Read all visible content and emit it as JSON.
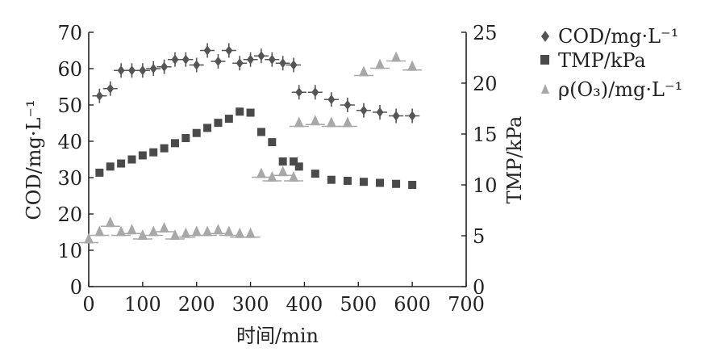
{
  "chart_data": {
    "type": "scatter",
    "xlabel": "时间/min",
    "ylabel_left": "COD/mg·L⁻¹",
    "ylabel_right": "TMP/kPa",
    "xlim": [
      0,
      700
    ],
    "ylim_left": [
      0,
      70
    ],
    "ylim_right": [
      0,
      25
    ],
    "xticks": [
      "0",
      "100",
      "200",
      "300",
      "400",
      "500",
      "600",
      "700"
    ],
    "yticks_left": [
      "0",
      "10",
      "20",
      "30",
      "40",
      "50",
      "60",
      "70"
    ],
    "yticks_right": [
      "0",
      "5",
      "10",
      "15",
      "20",
      "25"
    ],
    "legend_position": "top-right",
    "grid": false,
    "series": [
      {
        "name": "COD/mg·L⁻¹",
        "marker": "diamond-with-error-bars",
        "color": "#555555",
        "axis": "left",
        "x": [
          20,
          40,
          60,
          80,
          100,
          120,
          140,
          160,
          180,
          200,
          220,
          240,
          260,
          280,
          300,
          320,
          340,
          360,
          380,
          390,
          420,
          450,
          480,
          510,
          540,
          570,
          600
        ],
        "y": [
          52.5,
          54.5,
          59.5,
          59.5,
          59.5,
          60,
          60.5,
          62.5,
          62.5,
          61,
          65,
          62,
          65,
          61.5,
          62.5,
          63.5,
          62.5,
          61.5,
          61,
          53.5,
          53.5,
          51.5,
          50,
          48.5,
          48,
          47,
          47
        ]
      },
      {
        "name": "TMP/kPa",
        "marker": "square",
        "color": "#4a4a4a",
        "axis": "right",
        "x": [
          20,
          40,
          60,
          80,
          100,
          120,
          140,
          160,
          180,
          200,
          220,
          240,
          260,
          280,
          300,
          320,
          340,
          360,
          380,
          390,
          420,
          450,
          480,
          510,
          540,
          570,
          600
        ],
        "y": [
          11.2,
          11.8,
          12.1,
          12.5,
          12.9,
          13.2,
          13.6,
          14.1,
          14.6,
          15.1,
          15.6,
          16.1,
          16.5,
          17.2,
          17.1,
          15.2,
          14.2,
          12.3,
          12.3,
          11.8,
          11.1,
          10.5,
          10.4,
          10.3,
          10.2,
          10.1,
          10
        ]
      },
      {
        "name": "ρ(O₃)/mg·L⁻¹",
        "marker": "triangle-with-error-bars",
        "color": "#a8a8a8",
        "axis": "left",
        "x": [
          0,
          20,
          40,
          60,
          80,
          100,
          120,
          140,
          160,
          180,
          200,
          220,
          240,
          260,
          280,
          300,
          320,
          340,
          360,
          380,
          390,
          420,
          450,
          480,
          510,
          540,
          570,
          600
        ],
        "y": [
          13,
          15,
          17.5,
          15,
          15.5,
          14,
          15,
          16,
          14,
          14.5,
          15,
          15,
          15.5,
          15,
          14.5,
          14.5,
          31,
          30,
          31.5,
          30,
          45,
          45.5,
          45,
          45,
          59,
          61,
          63,
          60.5
        ]
      }
    ]
  }
}
